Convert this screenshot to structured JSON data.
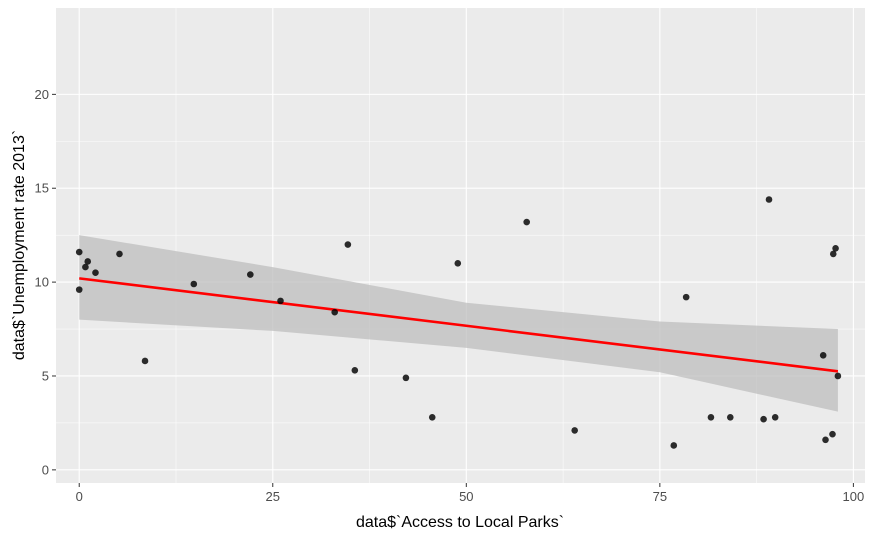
{
  "colors": {
    "panel": "#ebebeb",
    "grid_major": "#ffffff",
    "point": "#000000",
    "fit_line": "#ff0000",
    "ci_band": "#bdbdbd"
  },
  "chart_data": {
    "type": "scatter",
    "xlabel": "data$`Access to Local Parks`",
    "ylabel": "data$`Unemployment rate 2013`",
    "xlim": [
      -3,
      101.5
    ],
    "ylim": [
      -0.7,
      24.6
    ],
    "x_ticks": [
      0,
      25,
      50,
      75,
      100
    ],
    "y_ticks": [
      0,
      5,
      10,
      15,
      20
    ],
    "grid": true,
    "points": [
      {
        "x": 0.0,
        "y": 11.6
      },
      {
        "x": 0.0,
        "y": 9.6
      },
      {
        "x": 0.8,
        "y": 10.8
      },
      {
        "x": 1.1,
        "y": 11.1
      },
      {
        "x": 2.1,
        "y": 10.5
      },
      {
        "x": 5.2,
        "y": 11.5
      },
      {
        "x": 8.5,
        "y": 5.8
      },
      {
        "x": 14.8,
        "y": 9.9
      },
      {
        "x": 22.1,
        "y": 10.4
      },
      {
        "x": 26.0,
        "y": 9.0
      },
      {
        "x": 33.0,
        "y": 8.4
      },
      {
        "x": 34.7,
        "y": 12.0
      },
      {
        "x": 35.6,
        "y": 5.3
      },
      {
        "x": 42.2,
        "y": 4.9
      },
      {
        "x": 45.6,
        "y": 2.8
      },
      {
        "x": 48.9,
        "y": 11.0
      },
      {
        "x": 57.8,
        "y": 13.2
      },
      {
        "x": 64.0,
        "y": 2.1
      },
      {
        "x": 76.8,
        "y": 1.3
      },
      {
        "x": 78.4,
        "y": 9.2
      },
      {
        "x": 81.6,
        "y": 2.8
      },
      {
        "x": 84.1,
        "y": 2.8
      },
      {
        "x": 88.4,
        "y": 2.7
      },
      {
        "x": 89.1,
        "y": 14.4
      },
      {
        "x": 89.9,
        "y": 2.8
      },
      {
        "x": 96.1,
        "y": 6.1
      },
      {
        "x": 96.4,
        "y": 1.6
      },
      {
        "x": 97.3,
        "y": 1.9
      },
      {
        "x": 97.4,
        "y": 11.5
      },
      {
        "x": 97.7,
        "y": 11.8
      },
      {
        "x": 98.0,
        "y": 5.0
      }
    ],
    "fit": {
      "method": "lm",
      "x": [
        0,
        98
      ],
      "y": [
        10.2,
        5.25
      ],
      "ci_band": {
        "x": [
          0,
          25,
          50,
          75,
          98
        ],
        "lower": [
          8.0,
          7.4,
          6.5,
          5.2,
          3.1
        ],
        "upper": [
          12.5,
          10.8,
          8.9,
          7.9,
          7.5
        ]
      }
    }
  }
}
